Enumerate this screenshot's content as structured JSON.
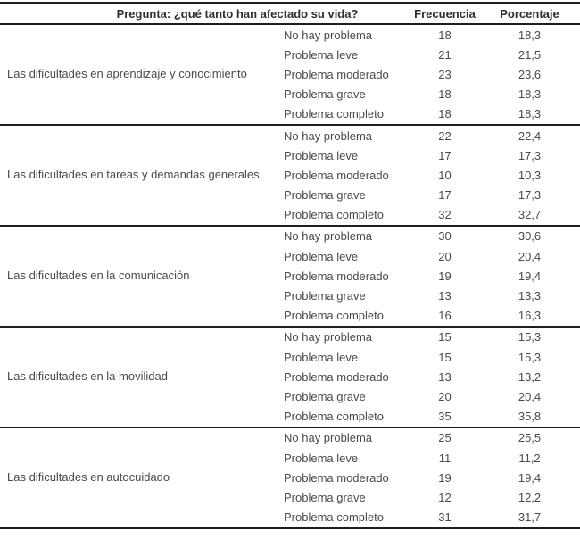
{
  "table": {
    "header": {
      "question": "Pregunta: ¿qué tanto han afectado su vida?",
      "frequency": "Frecuencia",
      "percentage": "Porcentaje"
    },
    "groups": [
      {
        "category": "Las dificultades en aprendizaje y conocimiento",
        "rows": [
          {
            "label": "No hay problema",
            "frequency": "18",
            "percentage": "18,3"
          },
          {
            "label": "Problema leve",
            "frequency": "21",
            "percentage": "21,5"
          },
          {
            "label": "Problema moderado",
            "frequency": "23",
            "percentage": "23,6"
          },
          {
            "label": "Problema grave",
            "frequency": "18",
            "percentage": "18,3"
          },
          {
            "label": "Problema completo",
            "frequency": "18",
            "percentage": "18,3"
          }
        ]
      },
      {
        "category": "Las dificultades en tareas y demandas generales",
        "rows": [
          {
            "label": "No hay problema",
            "frequency": "22",
            "percentage": "22,4"
          },
          {
            "label": "Problema leve",
            "frequency": "17",
            "percentage": "17,3"
          },
          {
            "label": "Problema moderado",
            "frequency": "10",
            "percentage": "10,3"
          },
          {
            "label": "Problema grave",
            "frequency": "17",
            "percentage": "17,3"
          },
          {
            "label": "Problema completo",
            "frequency": "32",
            "percentage": "32,7"
          }
        ]
      },
      {
        "category": "Las dificultades en la comunicación",
        "rows": [
          {
            "label": "No hay problema",
            "frequency": "30",
            "percentage": "30,6"
          },
          {
            "label": "Problema leve",
            "frequency": "20",
            "percentage": "20,4"
          },
          {
            "label": "Problema moderado",
            "frequency": "19",
            "percentage": "19,4"
          },
          {
            "label": "Problema grave",
            "frequency": "13",
            "percentage": "13,3"
          },
          {
            "label": "Problema completo",
            "frequency": "16",
            "percentage": "16,3"
          }
        ]
      },
      {
        "category": "Las dificultades en la movilidad",
        "rows": [
          {
            "label": "No hay problema",
            "frequency": "15",
            "percentage": "15,3"
          },
          {
            "label": "Problema leve",
            "frequency": "15",
            "percentage": "15,3"
          },
          {
            "label": "Problema moderado",
            "frequency": "13",
            "percentage": "13,2"
          },
          {
            "label": "Problema grave",
            "frequency": "20",
            "percentage": "20,4"
          },
          {
            "label": "Problema completo",
            "frequency": "35",
            "percentage": "35,8"
          }
        ]
      },
      {
        "category": "Las dificultades en autocuidado",
        "rows": [
          {
            "label": "No hay problema",
            "frequency": "25",
            "percentage": "25,5"
          },
          {
            "label": "Problema leve",
            "frequency": "11",
            "percentage": "11,2"
          },
          {
            "label": "Problema moderado",
            "frequency": "19",
            "percentage": "19,4"
          },
          {
            "label": "Problema grave",
            "frequency": "12",
            "percentage": "12,2"
          },
          {
            "label": "Problema completo",
            "frequency": "31",
            "percentage": "31,7"
          }
        ]
      }
    ]
  }
}
